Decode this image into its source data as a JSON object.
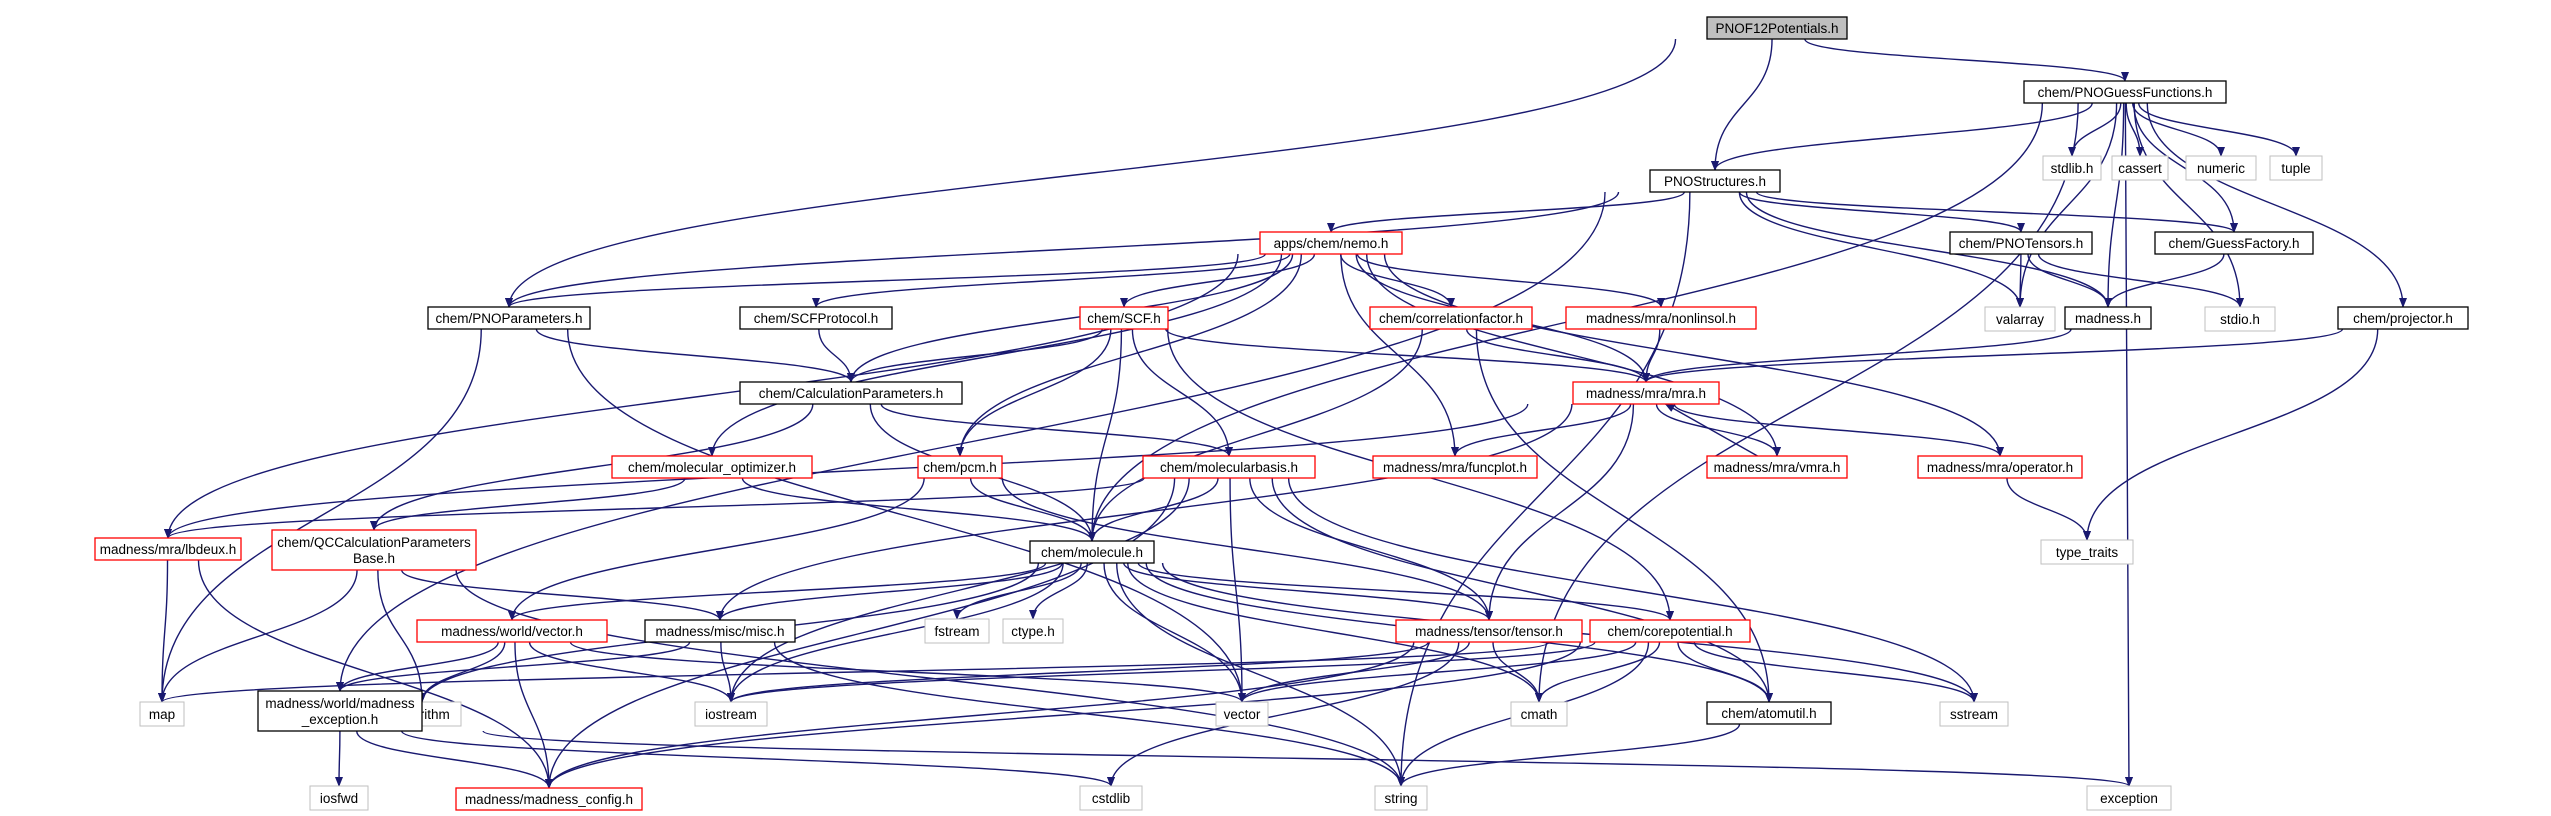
{
  "colors": {
    "edge": "#191970",
    "root_fill": "#bfbfbf",
    "node_fill": "#ffffff",
    "black_border": "#000000",
    "red_border": "#ff0000",
    "gray_border": "#bfbfbf"
  },
  "nodes": [
    {
      "id": "root",
      "label": "PNOF12Potentials.h",
      "style": "root"
    },
    {
      "id": "guess",
      "label": "chem/PNOGuessFunctions.h",
      "style": "black"
    },
    {
      "id": "struct",
      "label": "PNOStructures.h",
      "style": "black"
    },
    {
      "id": "stdlib",
      "label": "stdlib.h",
      "style": "gray"
    },
    {
      "id": "cassert",
      "label": "cassert",
      "style": "gray"
    },
    {
      "id": "numeric",
      "label": "numeric",
      "style": "gray"
    },
    {
      "id": "tuple",
      "label": "tuple",
      "style": "gray"
    },
    {
      "id": "nemo",
      "label": "apps/chem/nemo.h",
      "style": "red"
    },
    {
      "id": "tensors",
      "label": "chem/PNOTensors.h",
      "style": "black"
    },
    {
      "id": "gfactory",
      "label": "chem/GuessFactory.h",
      "style": "black"
    },
    {
      "id": "params",
      "label": "chem/PNOParameters.h",
      "style": "black"
    },
    {
      "id": "scfproto",
      "label": "chem/SCFProtocol.h",
      "style": "black"
    },
    {
      "id": "scf",
      "label": "chem/SCF.h",
      "style": "red"
    },
    {
      "id": "corrfac",
      "label": "chem/correlationfactor.h",
      "style": "red"
    },
    {
      "id": "nonlinsol",
      "label": "madness/mra/nonlinsol.h",
      "style": "red"
    },
    {
      "id": "valarray",
      "label": "valarray",
      "style": "gray"
    },
    {
      "id": "madness",
      "label": "madness.h",
      "style": "black"
    },
    {
      "id": "stdio",
      "label": "stdio.h",
      "style": "gray"
    },
    {
      "id": "projector",
      "label": "chem/projector.h",
      "style": "black"
    },
    {
      "id": "calcparams",
      "label": "chem/CalculationParameters.h",
      "style": "black"
    },
    {
      "id": "mra",
      "label": "madness/mra/mra.h",
      "style": "red"
    },
    {
      "id": "molopt",
      "label": "chem/molecular_optimizer.h",
      "style": "red"
    },
    {
      "id": "pcm",
      "label": "chem/pcm.h",
      "style": "red"
    },
    {
      "id": "molbasis",
      "label": "chem/molecularbasis.h",
      "style": "red"
    },
    {
      "id": "funcplot",
      "label": "madness/mra/funcplot.h",
      "style": "red"
    },
    {
      "id": "vmra",
      "label": "madness/mra/vmra.h",
      "style": "red"
    },
    {
      "id": "operator",
      "label": "madness/mra/operator.h",
      "style": "red"
    },
    {
      "id": "lbdeux",
      "label": "madness/mra/lbdeux.h",
      "style": "red"
    },
    {
      "id": "qccalc",
      "label": [
        "chem/QCCalculationParameters",
        "Base.h"
      ],
      "style": "red"
    },
    {
      "id": "molecule",
      "label": "chem/molecule.h",
      "style": "black"
    },
    {
      "id": "typetraits",
      "label": "type_traits",
      "style": "gray"
    },
    {
      "id": "wvector",
      "label": "madness/world/vector.h",
      "style": "red"
    },
    {
      "id": "misc",
      "label": "madness/misc/misc.h",
      "style": "black"
    },
    {
      "id": "fstream",
      "label": "fstream",
      "style": "gray"
    },
    {
      "id": "ctype",
      "label": "ctype.h",
      "style": "gray"
    },
    {
      "id": "tensor",
      "label": "madness/tensor/tensor.h",
      "style": "red"
    },
    {
      "id": "corepot",
      "label": "chem/corepotential.h",
      "style": "red"
    },
    {
      "id": "map",
      "label": "map",
      "style": "gray"
    },
    {
      "id": "algorithm",
      "label": "algorithm",
      "style": "gray"
    },
    {
      "id": "madexc",
      "label": [
        "madness/world/madness",
        "_exception.h"
      ],
      "style": "black"
    },
    {
      "id": "iostream",
      "label": "iostream",
      "style": "gray"
    },
    {
      "id": "vector",
      "label": "vector",
      "style": "gray"
    },
    {
      "id": "cmath",
      "label": "cmath",
      "style": "gray"
    },
    {
      "id": "atomutil",
      "label": "chem/atomutil.h",
      "style": "black"
    },
    {
      "id": "sstream",
      "label": "sstream",
      "style": "gray"
    },
    {
      "id": "iosfwd",
      "label": "iosfwd",
      "style": "gray"
    },
    {
      "id": "madconfig",
      "label": "madness/madness_config.h",
      "style": "red"
    },
    {
      "id": "cstdlib",
      "label": "cstdlib",
      "style": "gray"
    },
    {
      "id": "string",
      "label": "string",
      "style": "gray"
    },
    {
      "id": "exception",
      "label": "exception",
      "style": "gray"
    }
  ],
  "edges": [
    [
      "root",
      "guess"
    ],
    [
      "root",
      "struct"
    ],
    [
      "root",
      "params"
    ],
    [
      "guess",
      "struct"
    ],
    [
      "guess",
      "stdlib"
    ],
    [
      "guess",
      "cassert"
    ],
    [
      "guess",
      "numeric"
    ],
    [
      "guess",
      "tuple"
    ],
    [
      "guess",
      "valarray"
    ],
    [
      "guess",
      "madness"
    ],
    [
      "guess",
      "stdio"
    ],
    [
      "guess",
      "projector"
    ],
    [
      "guess",
      "molecule"
    ],
    [
      "guess",
      "cmath"
    ],
    [
      "guess",
      "exception"
    ],
    [
      "guess",
      "gfactory"
    ],
    [
      "struct",
      "nemo"
    ],
    [
      "struct",
      "tensors"
    ],
    [
      "struct",
      "gfactory"
    ],
    [
      "struct",
      "params"
    ],
    [
      "struct",
      "valarray"
    ],
    [
      "struct",
      "madness"
    ],
    [
      "struct",
      "madexc"
    ],
    [
      "struct",
      "string"
    ],
    [
      "nemo",
      "params"
    ],
    [
      "nemo",
      "scfproto"
    ],
    [
      "nemo",
      "scf"
    ],
    [
      "nemo",
      "corrfac"
    ],
    [
      "nemo",
      "nonlinsol"
    ],
    [
      "nemo",
      "calcparams"
    ],
    [
      "nemo",
      "mra"
    ],
    [
      "nemo",
      "molopt"
    ],
    [
      "nemo",
      "pcm"
    ],
    [
      "nemo",
      "funcplot"
    ],
    [
      "nemo",
      "vmra"
    ],
    [
      "nemo",
      "operator"
    ],
    [
      "nemo",
      "lbdeux"
    ],
    [
      "tensors",
      "valarray"
    ],
    [
      "tensors",
      "madness"
    ],
    [
      "tensors",
      "stdio"
    ],
    [
      "gfactory",
      "madness"
    ],
    [
      "params",
      "calcparams"
    ],
    [
      "params",
      "map"
    ],
    [
      "params",
      "vector"
    ],
    [
      "scfproto",
      "calcparams"
    ],
    [
      "scf",
      "calcparams"
    ],
    [
      "scf",
      "mra"
    ],
    [
      "scf",
      "pcm"
    ],
    [
      "scf",
      "molbasis"
    ],
    [
      "scf",
      "molecule"
    ],
    [
      "scf",
      "corepot"
    ],
    [
      "corrfac",
      "mra"
    ],
    [
      "corrfac",
      "molecule"
    ],
    [
      "corrfac",
      "atomutil"
    ],
    [
      "nonlinsol",
      "mra"
    ],
    [
      "madness",
      "mra"
    ],
    [
      "projector",
      "mra"
    ],
    [
      "projector",
      "typetraits"
    ],
    [
      "calcparams",
      "molbasis"
    ],
    [
      "calcparams",
      "molecule"
    ],
    [
      "calcparams",
      "qccalc"
    ],
    [
      "mra",
      "funcplot"
    ],
    [
      "mra",
      "vmra"
    ],
    [
      "mra",
      "operator"
    ],
    [
      "mra",
      "lbdeux"
    ],
    [
      "mra",
      "tensor"
    ],
    [
      "mra",
      "misc"
    ],
    [
      "vmra",
      "mra"
    ],
    [
      "operator",
      "typetraits"
    ],
    [
      "molopt",
      "molecule"
    ],
    [
      "molopt",
      "qccalc"
    ],
    [
      "pcm",
      "molecule"
    ],
    [
      "pcm",
      "tensor"
    ],
    [
      "pcm",
      "wvector"
    ],
    [
      "molbasis",
      "molecule"
    ],
    [
      "molbasis",
      "tensor"
    ],
    [
      "molbasis",
      "iostream"
    ],
    [
      "molbasis",
      "vector"
    ],
    [
      "molbasis",
      "sstream"
    ],
    [
      "molbasis",
      "atomutil"
    ],
    [
      "molbasis",
      "lbdeux"
    ],
    [
      "molbasis",
      "madconfig"
    ],
    [
      "lbdeux",
      "map"
    ],
    [
      "lbdeux",
      "madconfig"
    ],
    [
      "qccalc",
      "misc"
    ],
    [
      "qccalc",
      "map"
    ],
    [
      "qccalc",
      "algorithm"
    ],
    [
      "qccalc",
      "string"
    ],
    [
      "molecule",
      "wvector"
    ],
    [
      "molecule",
      "misc"
    ],
    [
      "molecule",
      "fstream"
    ],
    [
      "molecule",
      "ctype"
    ],
    [
      "molecule",
      "tensor"
    ],
    [
      "molecule",
      "corepot"
    ],
    [
      "molecule",
      "algorithm"
    ],
    [
      "molecule",
      "iostream"
    ],
    [
      "molecule",
      "vector"
    ],
    [
      "molecule",
      "cmath"
    ],
    [
      "molecule",
      "atomutil"
    ],
    [
      "molecule",
      "sstream"
    ],
    [
      "molecule",
      "string"
    ],
    [
      "wvector",
      "madexc"
    ],
    [
      "wvector",
      "algorithm"
    ],
    [
      "wvector",
      "iostream"
    ],
    [
      "wvector",
      "vector"
    ],
    [
      "wvector",
      "madconfig"
    ],
    [
      "misc",
      "madexc"
    ],
    [
      "misc",
      "iostream"
    ],
    [
      "misc",
      "string"
    ],
    [
      "tensor",
      "madconfig"
    ],
    [
      "tensor",
      "vector"
    ],
    [
      "tensor",
      "cmath"
    ],
    [
      "tensor",
      "iostream"
    ],
    [
      "tensor",
      "cstdlib"
    ],
    [
      "corepot",
      "atomutil"
    ],
    [
      "corepot",
      "map"
    ],
    [
      "corepot",
      "iostream"
    ],
    [
      "corepot",
      "vector"
    ],
    [
      "corepot",
      "cmath"
    ],
    [
      "corepot",
      "sstream"
    ],
    [
      "corepot",
      "string"
    ],
    [
      "corepot",
      "madconfig"
    ],
    [
      "madexc",
      "iosfwd"
    ],
    [
      "madexc",
      "madconfig"
    ],
    [
      "madexc",
      "exception"
    ],
    [
      "madexc",
      "cstdlib"
    ],
    [
      "atomutil",
      "string"
    ]
  ]
}
